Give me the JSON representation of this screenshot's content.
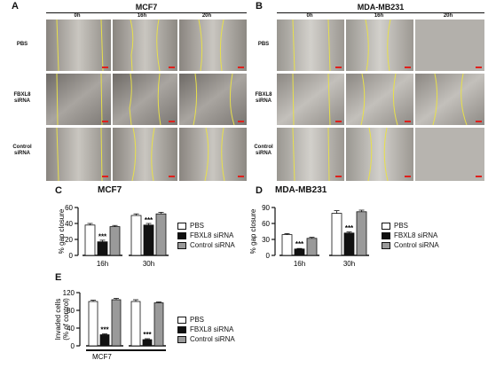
{
  "panelA": {
    "letter": "A",
    "title": "MCF7",
    "times": [
      "0h",
      "16h",
      "20h"
    ],
    "rows": [
      {
        "line1": "PBS",
        "line2": ""
      },
      {
        "line1": "FBXL8",
        "line2": "siRNA"
      },
      {
        "line1": "Control",
        "line2": "siRNA"
      }
    ]
  },
  "panelB": {
    "letter": "B",
    "title": "MDA-MB231",
    "times": [
      "0h",
      "16h",
      "20h"
    ],
    "rows": [
      {
        "line1": "PBS",
        "line2": ""
      },
      {
        "line1": "FBXL8",
        "line2": "siRNA"
      },
      {
        "line1": "Control",
        "line2": "siRNA"
      }
    ]
  },
  "legend": [
    "PBS",
    "FBXL8 siRNA",
    "Control siRNA"
  ],
  "colors": {
    "pbs": "#ffffff",
    "fbxl8": "#111111",
    "control": "#9a9a9a",
    "wound_line": "#e8e04a",
    "scale_bar": "#e0201c"
  },
  "chart_data": [
    {
      "panel": "C",
      "type": "bar",
      "title": "MCF7",
      "ylabel": "% gap closure",
      "ylim": [
        0,
        60
      ],
      "yticks": [
        "0",
        "20",
        "40",
        "60"
      ],
      "categories": [
        "16h",
        "30h"
      ],
      "series": [
        {
          "name": "PBS",
          "values": [
            38,
            50
          ],
          "errors": [
            2,
            2
          ]
        },
        {
          "name": "FBXL8 siRNA",
          "values": [
            17,
            38
          ],
          "errors": [
            2,
            2
          ]
        },
        {
          "name": "Control siRNA",
          "values": [
            36,
            52
          ],
          "errors": [
            1.5,
            2
          ]
        }
      ],
      "annotations": [
        "***",
        "***"
      ]
    },
    {
      "panel": "D",
      "type": "bar",
      "title": "MDA-MB231",
      "ylabel": "% gap closure",
      "ylim": [
        0,
        90
      ],
      "yticks": [
        "0",
        "30",
        "60",
        "90"
      ],
      "categories": [
        "16h",
        "30h"
      ],
      "series": [
        {
          "name": "PBS",
          "values": [
            39,
            79
          ],
          "errors": [
            2,
            5
          ]
        },
        {
          "name": "FBXL8 siRNA",
          "values": [
            12,
            42
          ],
          "errors": [
            1,
            2
          ]
        },
        {
          "name": "Control siRNA",
          "values": [
            32,
            82
          ],
          "errors": [
            2,
            3
          ]
        }
      ],
      "annotations": [
        "***",
        "***"
      ]
    },
    {
      "panel": "E",
      "type": "bar",
      "title": "",
      "ylabel": "Invaded cells (% of control)",
      "ylim": [
        0,
        120
      ],
      "yticks": [
        "0",
        "40",
        "80",
        "120"
      ],
      "categories": [
        "",
        ""
      ],
      "xlabel": "MCF7",
      "series": [
        {
          "name": "PBS",
          "values": [
            100,
            100
          ],
          "errors": [
            3,
            4
          ]
        },
        {
          "name": "FBXL8 siRNA",
          "values": [
            25,
            14
          ],
          "errors": [
            2,
            2
          ]
        },
        {
          "name": "Control siRNA",
          "values": [
            104,
            97
          ],
          "errors": [
            3,
            2
          ]
        }
      ],
      "annotations": [
        "***",
        "***"
      ]
    }
  ]
}
